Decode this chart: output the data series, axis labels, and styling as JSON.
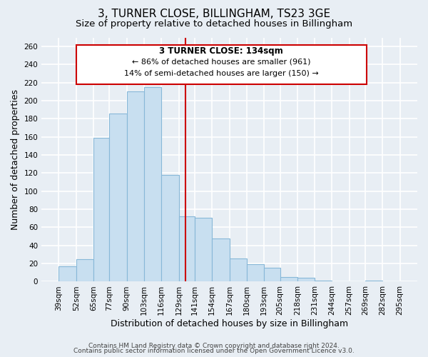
{
  "title": "3, TURNER CLOSE, BILLINGHAM, TS23 3GE",
  "subtitle": "Size of property relative to detached houses in Billingham",
  "xlabel": "Distribution of detached houses by size in Billingham",
  "ylabel": "Number of detached properties",
  "footer_lines": [
    "Contains HM Land Registry data © Crown copyright and database right 2024.",
    "Contains public sector information licensed under the Open Government Licence v3.0."
  ],
  "bar_left_edges": [
    39,
    52,
    65,
    77,
    90,
    103,
    116,
    129,
    141,
    154,
    167,
    180,
    193,
    205,
    218,
    231,
    244,
    257,
    269,
    282
  ],
  "bar_heights": [
    17,
    25,
    159,
    186,
    210,
    215,
    118,
    72,
    71,
    48,
    26,
    19,
    15,
    5,
    4,
    1,
    0,
    0,
    1,
    0
  ],
  "bar_widths": [
    13,
    13,
    12,
    13,
    13,
    13,
    13,
    12,
    13,
    13,
    13,
    13,
    12,
    13,
    13,
    13,
    13,
    12,
    13,
    13
  ],
  "bar_color": "#c8dff0",
  "bar_edgecolor": "#88b8d8",
  "x_tick_labels": [
    "39sqm",
    "52sqm",
    "65sqm",
    "77sqm",
    "90sqm",
    "103sqm",
    "116sqm",
    "129sqm",
    "141sqm",
    "154sqm",
    "167sqm",
    "180sqm",
    "193sqm",
    "205sqm",
    "218sqm",
    "231sqm",
    "244sqm",
    "257sqm",
    "269sqm",
    "282sqm",
    "295sqm"
  ],
  "x_tick_positions": [
    39,
    52,
    65,
    77,
    90,
    103,
    116,
    129,
    141,
    154,
    167,
    180,
    193,
    205,
    218,
    231,
    244,
    257,
    269,
    282,
    295
  ],
  "ylim": [
    0,
    270
  ],
  "xlim": [
    26,
    308
  ],
  "yticks": [
    0,
    20,
    40,
    60,
    80,
    100,
    120,
    140,
    160,
    180,
    200,
    220,
    240,
    260
  ],
  "vline_x": 134,
  "vline_color": "#cc0000",
  "annotation_title": "3 TURNER CLOSE: 134sqm",
  "annotation_line1": "← 86% of detached houses are smaller (961)",
  "annotation_line2": "14% of semi-detached houses are larger (150) →",
  "background_color": "#e8eef4",
  "grid_color": "#ffffff",
  "title_fontsize": 11,
  "subtitle_fontsize": 9.5,
  "axis_label_fontsize": 9,
  "tick_fontsize": 7.5,
  "annotation_fontsize": 8.5,
  "footer_fontsize": 6.5
}
